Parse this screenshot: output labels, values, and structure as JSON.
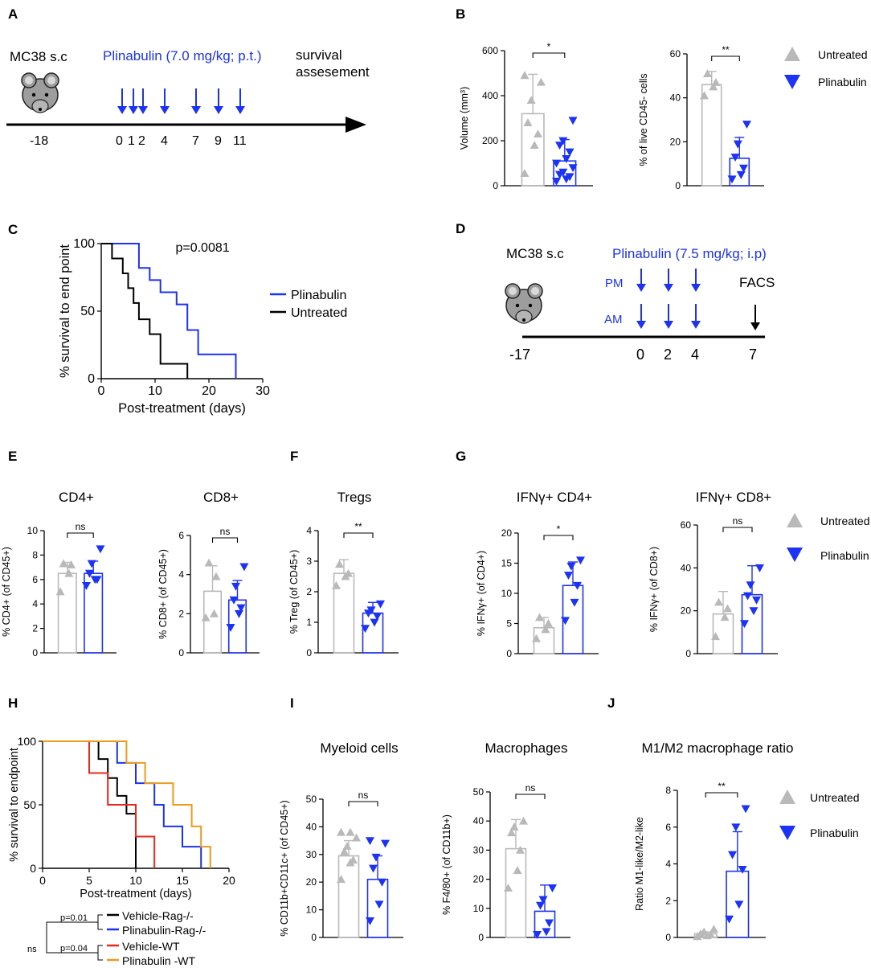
{
  "colors": {
    "untreated": "#b9b9b9",
    "plinabulin": "#1c33f5",
    "black": "#000000",
    "red": "#e8291c",
    "orange": "#ee9a1d"
  },
  "panelA": {
    "letter": "A",
    "model": "MC38 s.c",
    "treatment": "Plinabulin (7.0 mg/kg; p.t.)",
    "endpoint_line1": "survival",
    "endpoint_line2": "assesement",
    "day_labels": [
      "-18",
      "0",
      "1",
      "2",
      "4",
      "7",
      "9",
      "11"
    ]
  },
  "panelD": {
    "letter": "D",
    "model": "MC38 s.c",
    "treatment": "Plinabulin (7.5 mg/kg; i.p)",
    "pm": "PM",
    "am": "AM",
    "facs": "FACS",
    "day_labels": [
      "-17",
      "0",
      "2",
      "4",
      "7"
    ]
  },
  "legendB": {
    "untreated": "Untreated",
    "plinabulin": "Plinabulin"
  },
  "legendE": {
    "untreated": "Untreated",
    "plinabulin": "Plinabulin"
  },
  "legendJ": {
    "untreated": "Untreated",
    "plinabulin": "Plinabulin"
  },
  "letters": {
    "b": "B",
    "c": "C",
    "e": "E",
    "f": "F",
    "g": "G",
    "h": "H",
    "i": "I",
    "j": "J"
  },
  "chart_data": [
    {
      "id": "B1",
      "type": "bar",
      "title": "",
      "xlabel": "",
      "ylabel": "Volume (mm³)",
      "ylim": [
        0,
        600
      ],
      "yticks": [
        0,
        200,
        400,
        600
      ],
      "significance": "*",
      "categories": [
        "Untreated",
        "Plinabulin"
      ],
      "means": [
        320,
        110
      ],
      "errors": [
        175,
        95
      ],
      "points": [
        [
          55,
          180,
          230,
          280,
          380,
          460,
          490
        ],
        [
          20,
          30,
          40,
          50,
          60,
          80,
          100,
          120,
          150,
          180,
          200,
          290
        ]
      ]
    },
    {
      "id": "B2",
      "type": "bar",
      "title": "",
      "xlabel": "",
      "ylabel": "% of live CD45- cells",
      "ylim": [
        0,
        60
      ],
      "yticks": [
        0,
        20,
        40,
        60
      ],
      "significance": "**",
      "categories": [
        "Untreated",
        "Plinabulin"
      ],
      "means": [
        46,
        12.5
      ],
      "errors": [
        6,
        9.5
      ],
      "points": [
        [
          41,
          45,
          47,
          51
        ],
        [
          3,
          5,
          8,
          13,
          19,
          28
        ]
      ]
    },
    {
      "id": "C",
      "type": "line",
      "title": "",
      "xlabel": "Post-treatment (days)",
      "ylabel": "% survival to end point",
      "ylim": [
        0,
        100
      ],
      "xlim": [
        0,
        30
      ],
      "yticks": [
        0,
        50,
        100
      ],
      "xticks": [
        0,
        10,
        20,
        30
      ],
      "annotation": "p=0.0081",
      "series": [
        {
          "name": "Plinabulin",
          "color": "plinabulin",
          "steps": [
            [
              0,
              100
            ],
            [
              7,
              100
            ],
            [
              7,
              82
            ],
            [
              9,
              82
            ],
            [
              9,
              73
            ],
            [
              11,
              73
            ],
            [
              11,
              64
            ],
            [
              14,
              64
            ],
            [
              14,
              55
            ],
            [
              16,
              55
            ],
            [
              16,
              36
            ],
            [
              18,
              36
            ],
            [
              18,
              18
            ],
            [
              25,
              18
            ],
            [
              25,
              0
            ]
          ]
        },
        {
          "name": "Untreated",
          "color": "black",
          "steps": [
            [
              0,
              100
            ],
            [
              2,
              100
            ],
            [
              2,
              89
            ],
            [
              4,
              89
            ],
            [
              4,
              78
            ],
            [
              5,
              78
            ],
            [
              5,
              67
            ],
            [
              6,
              67
            ],
            [
              6,
              56
            ],
            [
              7,
              56
            ],
            [
              7,
              44
            ],
            [
              9,
              44
            ],
            [
              9,
              33
            ],
            [
              11,
              33
            ],
            [
              11,
              22
            ],
            [
              11,
              11
            ],
            [
              16,
              11
            ],
            [
              16,
              0
            ]
          ]
        }
      ]
    },
    {
      "id": "E1",
      "type": "bar",
      "title": "CD4+",
      "xlabel": "",
      "ylabel": "% CD4+ (of CD45+)",
      "ylim": [
        0,
        10
      ],
      "yticks": [
        0,
        2,
        4,
        6,
        8,
        10
      ],
      "significance": "ns",
      "categories": [
        "Untreated",
        "Plinabulin"
      ],
      "means": [
        6.5,
        6.5
      ],
      "errors": [
        0.9,
        1.0
      ],
      "points": [
        [
          5,
          6.5,
          7.2,
          7.3
        ],
        [
          5.5,
          6,
          6,
          6.5,
          7.3,
          8.5
        ]
      ]
    },
    {
      "id": "E2",
      "type": "bar",
      "title": "CD8+",
      "xlabel": "",
      "ylabel": "% CD8+ (of CD45+)",
      "ylim": [
        0,
        6
      ],
      "yticks": [
        0,
        2,
        4,
        6
      ],
      "significance": "ns",
      "categories": [
        "Untreated",
        "Plinabulin"
      ],
      "means": [
        3.15,
        2.7
      ],
      "errors": [
        1.3,
        1.0
      ],
      "points": [
        [
          1.8,
          2.0,
          3.9,
          4.6
        ],
        [
          1.3,
          2.0,
          2.3,
          2.7,
          3.4,
          4.4
        ]
      ]
    },
    {
      "id": "F",
      "type": "bar",
      "title": "Tregs",
      "xlabel": "",
      "ylabel": "% Treg (of CD45+)",
      "ylim": [
        0,
        4
      ],
      "yticks": [
        0,
        1,
        2,
        3,
        4
      ],
      "significance": "**",
      "categories": [
        "Untreated",
        "Plinabulin"
      ],
      "means": [
        2.6,
        1.3
      ],
      "errors": [
        0.45,
        0.35
      ],
      "points": [
        [
          2.2,
          2.5,
          2.6,
          2.9
        ],
        [
          0.8,
          1.0,
          1.2,
          1.3,
          1.4,
          1.6
        ]
      ]
    },
    {
      "id": "G1",
      "type": "bar",
      "title": "IFNγ+ CD4+",
      "xlabel": "",
      "ylabel": "% IFNγ+ (of CD4+)",
      "ylim": [
        0,
        20
      ],
      "yticks": [
        0,
        5,
        10,
        15,
        20
      ],
      "significance": "*",
      "categories": [
        "Untreated",
        "Plinabulin"
      ],
      "means": [
        4.3,
        11.3
      ],
      "errors": [
        1.7,
        3.9
      ],
      "points": [
        [
          2.5,
          4,
          5,
          6
        ],
        [
          5.5,
          8.5,
          11.3,
          13,
          14.5,
          15.5
        ]
      ]
    },
    {
      "id": "G2",
      "type": "bar",
      "title": "IFNγ+ CD8+",
      "xlabel": "",
      "ylabel": "% IFNγ+ (of CD8+)",
      "ylim": [
        0,
        60
      ],
      "yticks": [
        0,
        20,
        40,
        60
      ],
      "significance": "ns",
      "categories": [
        "Untreated",
        "Plinabulin"
      ],
      "means": [
        18.5,
        27.5
      ],
      "errors": [
        10.5,
        13.5
      ],
      "points": [
        [
          8,
          17,
          21,
          24
        ],
        [
          14,
          20,
          25,
          27,
          32,
          40
        ]
      ]
    },
    {
      "id": "H",
      "type": "line",
      "title": "",
      "xlabel": "Post-treatment (days)",
      "ylabel": "% survival to endpoint",
      "ylim": [
        0,
        100
      ],
      "xlim": [
        0,
        20
      ],
      "yticks": [
        0,
        50,
        100
      ],
      "xticks": [
        0,
        5,
        10,
        15,
        20
      ],
      "series": [
        {
          "name": "Vehicle-Rag-/-",
          "color": "black",
          "steps": [
            [
              0,
              100
            ],
            [
              6,
              100
            ],
            [
              6,
              86
            ],
            [
              7,
              86
            ],
            [
              7,
              71
            ],
            [
              8,
              71
            ],
            [
              8,
              57
            ],
            [
              9,
              57
            ],
            [
              9,
              43
            ],
            [
              10,
              43
            ],
            [
              10,
              0
            ]
          ]
        },
        {
          "name": "Plinabulin-Rag-/-",
          "color": "plinabulin",
          "steps": [
            [
              0,
              100
            ],
            [
              8,
              100
            ],
            [
              8,
              83
            ],
            [
              10,
              83
            ],
            [
              10,
              67
            ],
            [
              12,
              67
            ],
            [
              12,
              50
            ],
            [
              13,
              50
            ],
            [
              13,
              33
            ],
            [
              15,
              33
            ],
            [
              15,
              17
            ],
            [
              17,
              17
            ],
            [
              17,
              0
            ]
          ]
        },
        {
          "name": "Vehicle-WT",
          "color": "red",
          "steps": [
            [
              0,
              100
            ],
            [
              5,
              100
            ],
            [
              5,
              75
            ],
            [
              7,
              75
            ],
            [
              7,
              50
            ],
            [
              10,
              50
            ],
            [
              10,
              25
            ],
            [
              12,
              25
            ],
            [
              12,
              0
            ]
          ]
        },
        {
          "name": "Plinabulin -WT",
          "color": "orange",
          "steps": [
            [
              0,
              100
            ],
            [
              9,
              100
            ],
            [
              9,
              83
            ],
            [
              11,
              83
            ],
            [
              11,
              67
            ],
            [
              14,
              67
            ],
            [
              14,
              50
            ],
            [
              16,
              50
            ],
            [
              16,
              33
            ],
            [
              17,
              33
            ],
            [
              17,
              17
            ],
            [
              18,
              17
            ],
            [
              18,
              0
            ]
          ]
        }
      ],
      "comparisons": [
        {
          "label": "p=0.01"
        },
        {
          "label": "p=0.04"
        },
        {
          "label": "ns"
        }
      ]
    },
    {
      "id": "I1",
      "type": "bar",
      "title": "Myeloid cells",
      "xlabel": "",
      "ylabel": "% CD11b+CD11c+ (of CD45+)",
      "ylim": [
        0,
        50
      ],
      "yticks": [
        0,
        10,
        20,
        30,
        40,
        50
      ],
      "significance": "ns",
      "categories": [
        "Untreated",
        "Plinabulin"
      ],
      "means": [
        29.5,
        21
      ],
      "errors": [
        5.5,
        8.5
      ],
      "points": [
        [
          21,
          27,
          28,
          31,
          33,
          36,
          38,
          38
        ],
        [
          6,
          12,
          20,
          25,
          29,
          34,
          35
        ]
      ]
    },
    {
      "id": "I2",
      "type": "bar",
      "title": "Macrophages",
      "xlabel": "",
      "ylabel": "% F4/80+ (of CD11b+)",
      "ylim": [
        0,
        50
      ],
      "yticks": [
        0,
        10,
        20,
        30,
        40,
        50
      ],
      "significance": "ns",
      "categories": [
        "Untreated",
        "Plinabulin"
      ],
      "means": [
        30.5,
        9
      ],
      "errors": [
        10,
        9
      ],
      "points": [
        [
          17,
          23,
          30,
          36,
          38,
          40
        ],
        [
          1,
          2,
          5,
          11,
          13,
          17
        ]
      ]
    },
    {
      "id": "J",
      "type": "bar",
      "title": "M1/M2 macrophage ratio",
      "xlabel": "",
      "ylabel": "Ratio M1-like/M2-like",
      "ylim": [
        0,
        8
      ],
      "yticks": [
        0,
        2,
        4,
        6,
        8
      ],
      "significance": "**",
      "categories": [
        "Untreated",
        "Plinabulin"
      ],
      "means": [
        0.2,
        3.6
      ],
      "errors": [
        0.1,
        2.15
      ],
      "points": [
        [
          0.05,
          0.1,
          0.15,
          0.2,
          0.3,
          0.45
        ],
        [
          1.0,
          1.8,
          3.7,
          4.5,
          6.0,
          7.0
        ]
      ]
    }
  ]
}
